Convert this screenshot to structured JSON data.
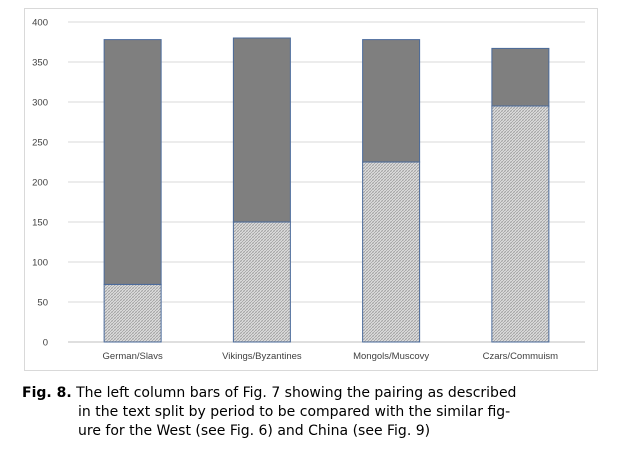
{
  "chart_data": {
    "type": "bar",
    "stacked": true,
    "categories": [
      "German/Slavs",
      "Vikings/Byzantines",
      "Mongols/Muscovy",
      "Czars/Commuism"
    ],
    "series": [
      {
        "fill": "hatched",
        "color": "#d0d0d0",
        "values": [
          72,
          150,
          225,
          295
        ]
      },
      {
        "fill": "solid",
        "color": "#7f7f7f",
        "values": [
          306,
          230,
          153,
          72
        ]
      }
    ],
    "totals": [
      378,
      380,
      378,
      367
    ],
    "ylim": [
      0,
      400
    ],
    "yticks": [
      0,
      50,
      100,
      150,
      200,
      250,
      300,
      350,
      400
    ],
    "grid": true,
    "legend": "none",
    "title": "",
    "xlabel": "",
    "ylabel": ""
  },
  "caption": {
    "label": "Fig. 8.",
    "line1": "The left column bars of Fig. 7 showing the pairing as described",
    "line2": "in the text split by period to be compared with the similar fig-",
    "line3": "ure for the West (see Fig. 6) and China (see Fig. 9)"
  }
}
